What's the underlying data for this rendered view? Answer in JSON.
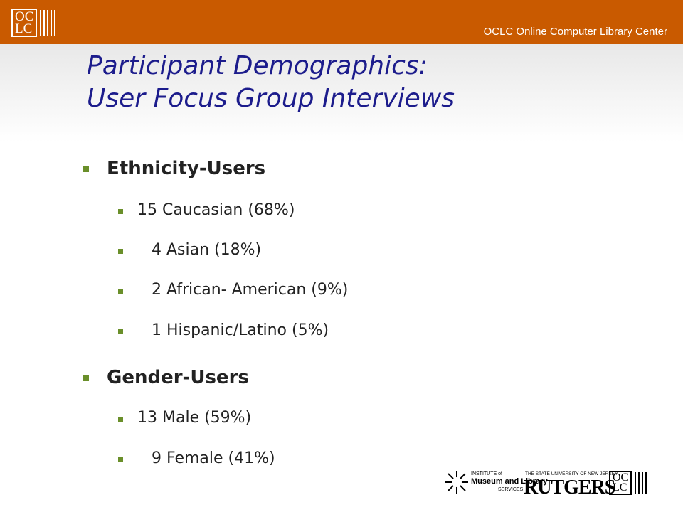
{
  "header": {
    "logo": [
      "OC",
      "LC"
    ],
    "org": "OCLC Online Computer Library Center"
  },
  "title": [
    "Participant Demographics:",
    "User Focus Group Interviews"
  ],
  "sections": [
    {
      "heading": "Ethnicity-Users",
      "items": [
        "15 Caucasian (68%)",
        "4 Asian (18%)",
        "2 African- American (9%)",
        "1 Hispanic/Latino (5%)"
      ]
    },
    {
      "heading": "Gender-Users",
      "items": [
        "13 Male (59%)",
        "9 Female (41%)"
      ]
    }
  ],
  "footer": {
    "imls": [
      "INSTITUTE of",
      "Museum and Library",
      "SERVICES"
    ],
    "rutgers_top": "THE STATE UNIVERSITY OF NEW JERSEY",
    "rutgers": "RUTGERS",
    "oclc": [
      "OC",
      "LC"
    ]
  }
}
